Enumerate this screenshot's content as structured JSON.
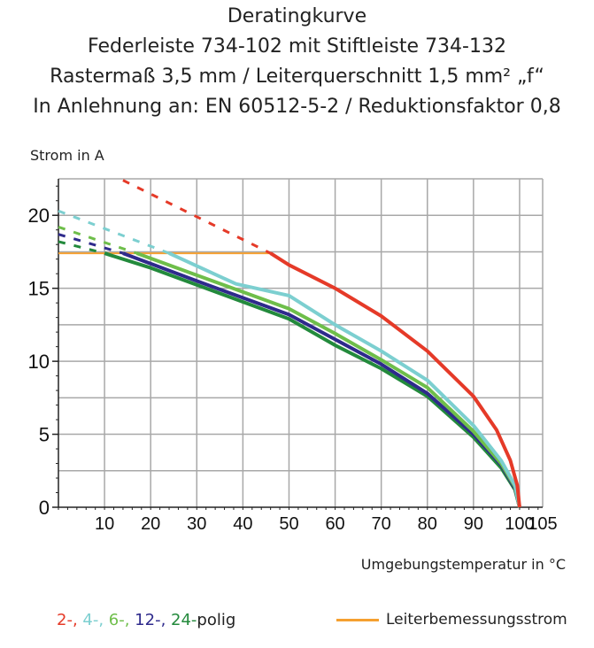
{
  "title_lines": [
    "Deratingkurve",
    "Federleiste 734-102 mit Stiftleiste 734-132",
    "Rastermaß 3,5 mm / Leiterquerschnitt 1,5 mm² „f“",
    "In Anlehnung an: EN 60512-5-2 / Reduktionsfaktor 0,8"
  ],
  "chart_data": {
    "type": "line",
    "ylabel": "Strom in A",
    "xlabel": "Umgebungstemperatur in °C",
    "xlim": [
      0,
      105
    ],
    "ylim": [
      0,
      22.5
    ],
    "xticks": [
      10,
      20,
      30,
      40,
      50,
      60,
      70,
      80,
      90,
      100,
      105
    ],
    "yticks": [
      0,
      5,
      10,
      15,
      20
    ],
    "grid": true,
    "rated_current": {
      "name": "Leiterbemessungsstrom",
      "color": "#f5a030",
      "x": [
        0,
        46
      ],
      "y": 17.4
    },
    "series": [
      {
        "name": "2-",
        "color": "#e53a28",
        "dashed": [
          [
            14,
            22.4
          ],
          [
            46,
            17.4
          ]
        ],
        "solid": [
          [
            46,
            17.4
          ],
          [
            50,
            16.6
          ],
          [
            60,
            15.0
          ],
          [
            70,
            13.1
          ],
          [
            80,
            10.7
          ],
          [
            90,
            7.6
          ],
          [
            95,
            5.3
          ],
          [
            98,
            3.2
          ],
          [
            99.5,
            1.5
          ],
          [
            100,
            0
          ]
        ]
      },
      {
        "name": "4-",
        "color": "#7ccfd0",
        "dashed": [
          [
            0,
            20.3
          ],
          [
            24,
            17.4
          ]
        ],
        "solid": [
          [
            24,
            17.4
          ],
          [
            38.5,
            15.3
          ],
          [
            50,
            14.5
          ],
          [
            60,
            12.5
          ],
          [
            70,
            10.7
          ],
          [
            80,
            8.7
          ],
          [
            90,
            5.6
          ],
          [
            96,
            3.2
          ],
          [
            99,
            1.5
          ],
          [
            100,
            0
          ]
        ]
      },
      {
        "name": "6-",
        "color": "#6ebe4a",
        "dashed": [
          [
            0,
            19.2
          ],
          [
            17,
            17.4
          ]
        ],
        "solid": [
          [
            17,
            17.4
          ],
          [
            30,
            15.9
          ],
          [
            50,
            13.6
          ],
          [
            60,
            11.9
          ],
          [
            70,
            10.1
          ],
          [
            80,
            8.2
          ],
          [
            90,
            5.2
          ],
          [
            96,
            3.0
          ],
          [
            99,
            1.4
          ],
          [
            100,
            0
          ]
        ]
      },
      {
        "name": "12-",
        "color": "#2e2a8c",
        "dashed": [
          [
            0,
            18.7
          ],
          [
            14,
            17.4
          ]
        ],
        "solid": [
          [
            14,
            17.4
          ],
          [
            30,
            15.5
          ],
          [
            50,
            13.2
          ],
          [
            60,
            11.5
          ],
          [
            70,
            9.8
          ],
          [
            80,
            7.8
          ],
          [
            90,
            5.0
          ],
          [
            96,
            2.9
          ],
          [
            99,
            1.3
          ],
          [
            100,
            0
          ]
        ]
      },
      {
        "name": "24-",
        "color": "#238a3c",
        "dashed": [
          [
            0,
            18.2
          ],
          [
            10,
            17.4
          ]
        ],
        "solid": [
          [
            10,
            17.4
          ],
          [
            20,
            16.4
          ],
          [
            50,
            12.9
          ],
          [
            60,
            11.1
          ],
          [
            70,
            9.5
          ],
          [
            80,
            7.6
          ],
          [
            90,
            4.8
          ],
          [
            96,
            2.7
          ],
          [
            99,
            1.2
          ],
          [
            100,
            0
          ]
        ]
      }
    ]
  },
  "legend": {
    "suffix": "polig",
    "sep": ", ",
    "rated_label": "Leiterbemessungsstrom"
  }
}
